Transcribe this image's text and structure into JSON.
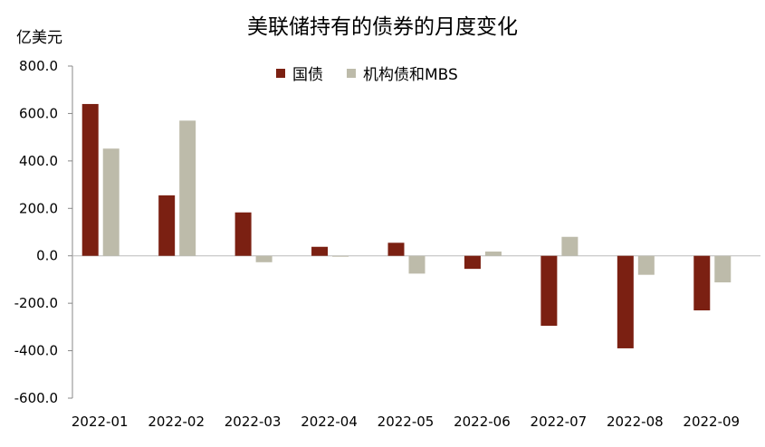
{
  "chart_data": {
    "type": "bar",
    "title": "美联储持有的债券的月度变化",
    "ylabel": "亿美元",
    "xlabel": "",
    "ylim": [
      -600,
      800
    ],
    "yticks": [
      "800.0",
      "600.0",
      "400.0",
      "200.0",
      "0.0",
      "-200.0",
      "-400.0",
      "-600.0"
    ],
    "categories": [
      "2022-01",
      "2022-02",
      "2022-03",
      "2022-04",
      "2022-05",
      "2022-06",
      "2022-07",
      "2022-08",
      "2022-09"
    ],
    "series": [
      {
        "name": "国债",
        "color": "#7B2012",
        "values": [
          640,
          255,
          183,
          38,
          55,
          -55,
          -295,
          -390,
          -230
        ]
      },
      {
        "name": "机构债和MBS",
        "color": "#BDBBAA",
        "values": [
          452,
          570,
          -27,
          0,
          -75,
          18,
          80,
          -80,
          -112
        ]
      }
    ],
    "legend_position": "top",
    "grid": false
  }
}
